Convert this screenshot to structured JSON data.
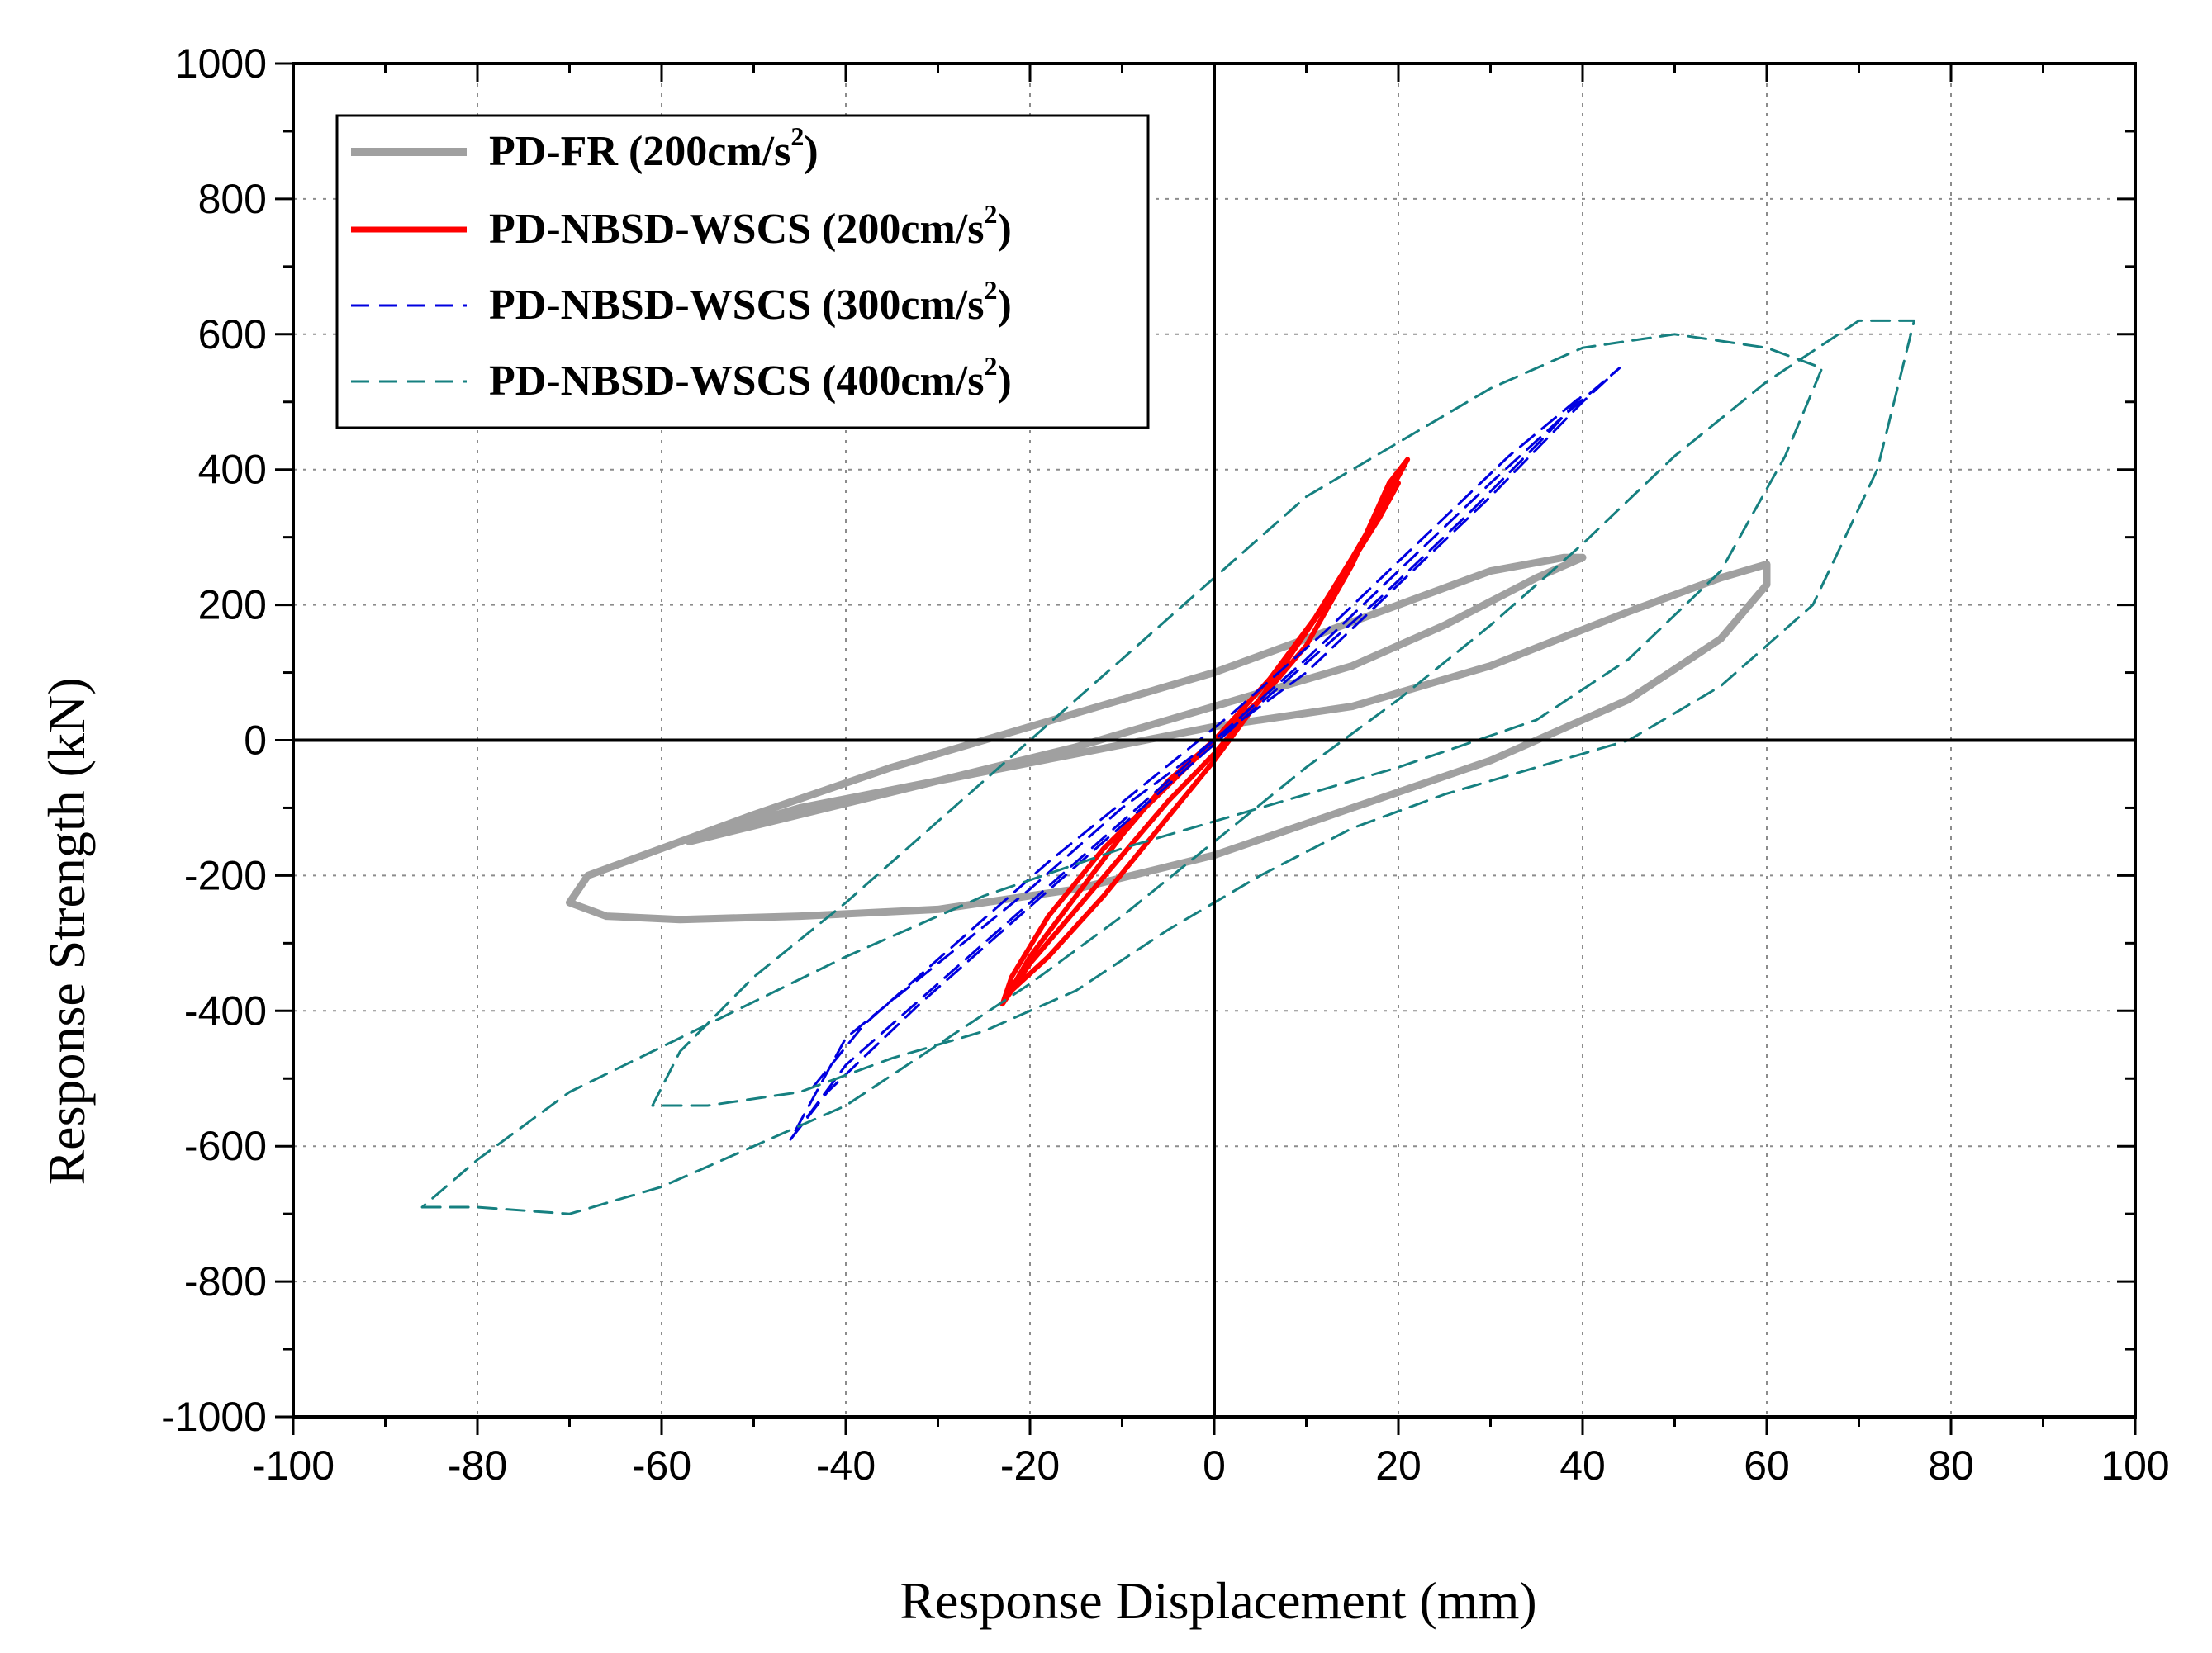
{
  "chart_data": {
    "type": "line",
    "title": "",
    "xlabel": "Response Displacement (mm)",
    "ylabel": "Response Strength (kN)",
    "xlim": [
      -100,
      100
    ],
    "ylim": [
      -1000,
      1000
    ],
    "xticks": [
      "-100",
      "-80",
      "-60",
      "-40",
      "-20",
      "0",
      "20",
      "40",
      "60",
      "80",
      "100"
    ],
    "yticks": [
      "1000",
      "800",
      "600",
      "400",
      "200",
      "0",
      "-200",
      "-400",
      "-600",
      "-800",
      "-1000"
    ],
    "grid": true,
    "legend_position": "top-left",
    "series": [
      {
        "name_main": "PD-FR (200cm/s",
        "name_sup": "2",
        "name_end": ")",
        "color": "#a0a0a0",
        "style": "solid-thick",
        "x": [
          -57,
          -45,
          -30,
          -15,
          -5,
          5,
          15,
          25,
          35,
          40,
          38,
          30,
          20,
          10,
          0,
          -10,
          -20,
          -35,
          -50,
          -60,
          -68,
          -70,
          -66,
          -58,
          -45,
          -30,
          -15,
          0,
          15,
          30,
          45,
          55,
          60,
          60,
          55,
          45,
          30,
          15,
          0,
          -15,
          -30,
          -45,
          -55,
          -57
        ],
        "y": [
          -150,
          -110,
          -60,
          -10,
          30,
          70,
          110,
          170,
          240,
          270,
          270,
          250,
          200,
          150,
          100,
          60,
          20,
          -40,
          -110,
          -160,
          -200,
          -240,
          -260,
          -265,
          -260,
          -250,
          -220,
          -170,
          -100,
          -30,
          60,
          150,
          230,
          260,
          240,
          190,
          110,
          50,
          20,
          -20,
          -60,
          -100,
          -140,
          -150
        ]
      },
      {
        "name_main": "PD-NBSD-WSCS (200cm/s",
        "name_sup": "2",
        "name_end": ")",
        "color": "#ff0000",
        "style": "solid",
        "x": [
          -23,
          -20,
          -15,
          -10,
          -5,
          0,
          5,
          10,
          15,
          18,
          21,
          19,
          15,
          10,
          5,
          0,
          -5,
          -10,
          -15,
          -20,
          -23,
          -22,
          -18,
          -12,
          -6,
          0,
          6,
          12,
          17,
          20,
          18,
          12,
          6,
          0,
          -6,
          -12,
          -18,
          -22
        ],
        "y": [
          -390,
          -330,
          -250,
          -170,
          -90,
          -20,
          60,
          160,
          270,
          340,
          415,
          380,
          260,
          140,
          60,
          0,
          -60,
          -140,
          -230,
          -320,
          -390,
          -350,
          -260,
          -160,
          -80,
          0,
          90,
          200,
          310,
          380,
          330,
          200,
          80,
          -30,
          -130,
          -230,
          -320,
          -370
        ]
      },
      {
        "name_main": "PD-NBSD-WSCS (300cm/s",
        "name_sup": "2",
        "name_end": ")",
        "color": "#0000e0",
        "style": "dashed",
        "x": [
          -46,
          -40,
          -30,
          -20,
          -10,
          0,
          10,
          20,
          30,
          38,
          44,
          40,
          30,
          20,
          10,
          0,
          -10,
          -20,
          -30,
          -40,
          -46,
          -42,
          -32,
          -22,
          -12,
          -2,
          8,
          18,
          28,
          36,
          40,
          32,
          22,
          12,
          2,
          -8,
          -18,
          -28,
          -38,
          -44
        ],
        "y": [
          -590,
          -480,
          -360,
          -240,
          -120,
          0,
          120,
          250,
          380,
          480,
          550,
          500,
          360,
          230,
          100,
          0,
          -100,
          -220,
          -330,
          -440,
          -590,
          -520,
          -390,
          -270,
          -150,
          -30,
          90,
          210,
          340,
          450,
          510,
          420,
          290,
          160,
          40,
          -70,
          -180,
          -300,
          -420,
          -520
        ]
      },
      {
        "name_main": "PD-NBSD-WSCS (400cm/s",
        "name_sup": "2",
        "name_end": ")",
        "color": "#168080",
        "style": "dashed",
        "x": [
          -86,
          -80,
          -70,
          -60,
          -50,
          -40,
          -30,
          -20,
          -10,
          0,
          10,
          20,
          30,
          40,
          50,
          60,
          70,
          76,
          72,
          65,
          55,
          45,
          35,
          25,
          15,
          5,
          -5,
          -15,
          -25,
          -35,
          -45,
          -55,
          -61,
          -58,
          -50,
          -40,
          -30,
          -20,
          -10,
          0,
          10,
          20,
          30,
          40,
          50,
          60,
          66,
          62,
          55,
          45,
          35,
          20,
          5,
          -10,
          -25,
          -40,
          -55,
          -70,
          -80,
          -86
        ],
        "y": [
          -690,
          -690,
          -700,
          -660,
          -600,
          -540,
          -450,
          -360,
          -260,
          -150,
          -40,
          60,
          170,
          290,
          420,
          530,
          620,
          620,
          400,
          200,
          80,
          0,
          -40,
          -80,
          -130,
          -200,
          -280,
          -370,
          -430,
          -470,
          -520,
          -540,
          -540,
          -460,
          -350,
          -240,
          -120,
          0,
          120,
          240,
          360,
          440,
          520,
          580,
          600,
          580,
          550,
          420,
          250,
          120,
          30,
          -40,
          -100,
          -160,
          -230,
          -320,
          -420,
          -520,
          -620,
          -690
        ]
      }
    ]
  }
}
